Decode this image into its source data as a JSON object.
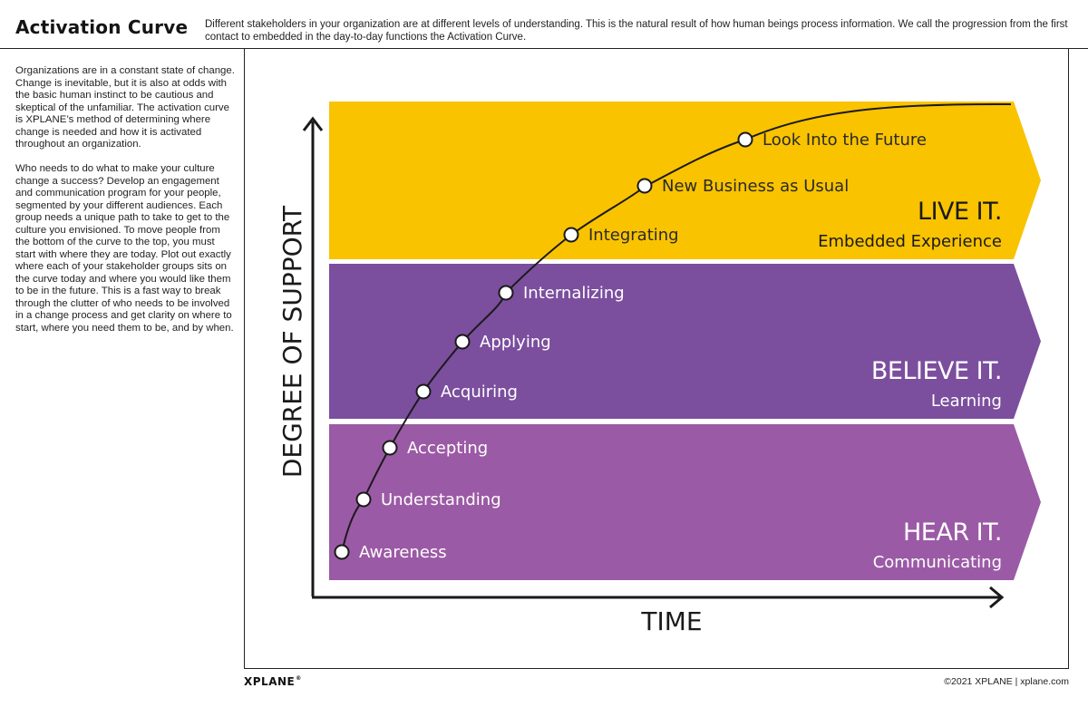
{
  "header": {
    "title": "Activation Curve",
    "intro": "Different stakeholders in your organization are at different levels of understanding. This is the natural result of how human beings process information. We call the progression from the first contact to embedded in the day-to-day functions the Activation Curve."
  },
  "sidebar": {
    "paragraph_1": "Organizations are in a constant state of change. Change is inevitable, but it is also at odds with the basic human instinct to be cautious and skeptical of the unfamiliar. The activation curve is XPLANE’s method of determining where change is needed and how it is activated throughout an organization.",
    "paragraph_2": "Who needs to do what to make your culture change a success? Develop an engagement and communication program for your people, segmented by your different audiences. Each group needs a unique path to take to get to the culture you envisioned. To move people from the bottom of the curve to the top, you must start with where they are today. Plot out exactly where each of your stakeholder groups sits on the curve today and where you would like them to be in the future. This is a fast way to break through the clutter of who needs to be involved in a change process and get clarity on where to start, where you need them to be, and by when."
  },
  "diagram": {
    "y_axis_label": "DEGREE OF SUPPORT",
    "x_axis_label": "TIME",
    "bands": [
      {
        "id": "live",
        "title": "LIVE IT.",
        "subtitle": "Embedded Experience",
        "color": "#F9C300"
      },
      {
        "id": "believe",
        "title": "BELIEVE IT.",
        "subtitle": "Learning",
        "color": "#7B4E9E"
      },
      {
        "id": "hear",
        "title": "HEAR IT.",
        "subtitle": "Communicating",
        "color": "#9B5AA5"
      }
    ],
    "stages": [
      "Awareness",
      "Understanding",
      "Accepting",
      "Acquiring",
      "Applying",
      "Internalizing",
      "Integrating",
      "New Business as Usual",
      "Look Into the Future"
    ]
  },
  "footer": {
    "brand": "XPLANE",
    "brand_mark": "®",
    "copyright": "©2021 XPLANE | xplane.com"
  }
}
